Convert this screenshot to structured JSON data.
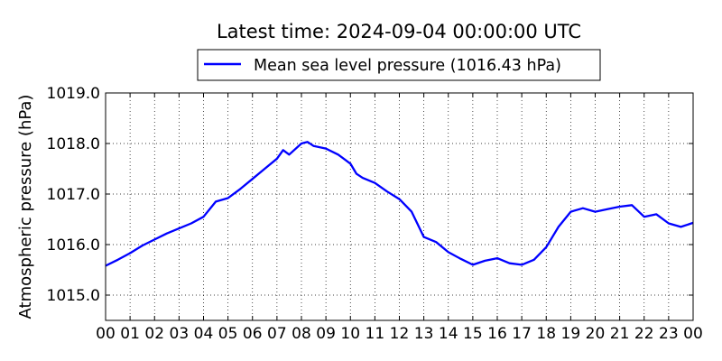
{
  "chart_data": {
    "type": "line",
    "title": "Latest time: 2024-09-04 00:00:00 UTC",
    "ylabel": "Atmospheric pressure (hPa)",
    "xlabel": "",
    "xlim": [
      0,
      24
    ],
    "ylim": [
      1014.5,
      1019.0
    ],
    "x_ticks": [
      "00",
      "01",
      "02",
      "03",
      "04",
      "05",
      "06",
      "07",
      "08",
      "09",
      "10",
      "11",
      "12",
      "13",
      "14",
      "15",
      "16",
      "17",
      "18",
      "19",
      "20",
      "21",
      "22",
      "23",
      "00"
    ],
    "y_ticks": [
      "1015.0",
      "1016.0",
      "1017.0",
      "1018.0",
      "1019.0"
    ],
    "y_tick_values": [
      1015.0,
      1016.0,
      1017.0,
      1018.0,
      1019.0
    ],
    "grid": true,
    "legend": "top-center, above plot",
    "series": [
      {
        "name": "Mean sea level pressure (1016.43 hPa)",
        "color": "#0000ff",
        "x": [
          0,
          0.5,
          1,
          1.5,
          2,
          2.5,
          3,
          3.5,
          4,
          4.5,
          5,
          5.5,
          6,
          6.5,
          7,
          7.25,
          7.5,
          8,
          8.25,
          8.5,
          9,
          9.5,
          10,
          10.25,
          10.5,
          11,
          11.5,
          12,
          12.5,
          13,
          13.5,
          14,
          14.5,
          15,
          15.5,
          16,
          16.5,
          17,
          17.5,
          18,
          18.5,
          19,
          19.5,
          20,
          20.5,
          21,
          21.5,
          22,
          22.5,
          23,
          23.5,
          24
        ],
        "y": [
          1015.58,
          1015.7,
          1015.83,
          1015.98,
          1016.1,
          1016.22,
          1016.32,
          1016.42,
          1016.55,
          1016.85,
          1016.92,
          1017.1,
          1017.3,
          1017.5,
          1017.7,
          1017.87,
          1017.78,
          1018.0,
          1018.03,
          1017.95,
          1017.9,
          1017.78,
          1017.6,
          1017.4,
          1017.32,
          1017.22,
          1017.05,
          1016.9,
          1016.65,
          1016.15,
          1016.05,
          1015.85,
          1015.72,
          1015.6,
          1015.68,
          1015.73,
          1015.63,
          1015.6,
          1015.7,
          1015.95,
          1016.35,
          1016.65,
          1016.72,
          1016.65,
          1016.7,
          1016.75,
          1016.78,
          1016.55,
          1016.6,
          1016.42,
          1016.35,
          1016.43
        ]
      }
    ]
  }
}
